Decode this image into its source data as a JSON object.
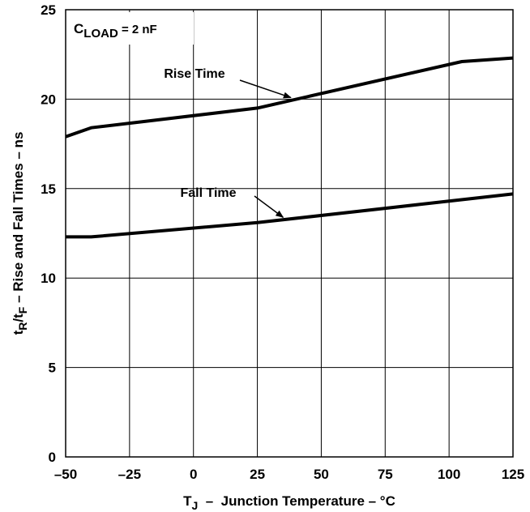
{
  "chart_data": {
    "type": "line",
    "xlabel": {
      "main": "T",
      "sub": "J",
      "rest": "  –  Junction Temperature – °C"
    },
    "ylabel": {
      "p1": "t",
      "p1_sub": "R",
      "p2": "/t",
      "p2_sub": "F",
      "p3": " – Rise and Fall Times – ns"
    },
    "xlim": [
      -50,
      125
    ],
    "ylim": [
      0,
      25
    ],
    "x_ticks": [
      "–50",
      "–25",
      "0",
      "25",
      "50",
      "75",
      "100",
      "125"
    ],
    "y_ticks": [
      "0",
      "5",
      "10",
      "15",
      "20",
      "25"
    ],
    "x_tick_values": [
      -50,
      -25,
      0,
      25,
      50,
      75,
      100,
      125
    ],
    "y_tick_values": [
      0,
      5,
      10,
      15,
      20,
      25
    ],
    "grid": true,
    "condition": {
      "main": "C",
      "sub": "LOAD",
      "rest": " = 2 nF"
    },
    "series": [
      {
        "name": "Rise Time",
        "x": [
          -50,
          -40,
          25,
          105,
          125
        ],
        "y": [
          17.9,
          18.4,
          19.5,
          22.1,
          22.3
        ]
      },
      {
        "name": "Fall Time",
        "x": [
          -50,
          -40,
          25,
          125
        ],
        "y": [
          12.3,
          12.3,
          13.1,
          14.7
        ]
      }
    ],
    "annotations": [
      {
        "text": "Rise Time",
        "target_x": 40,
        "target_y": 20.0
      },
      {
        "text": "Fall Time",
        "target_x": 37,
        "target_y": 13.3
      }
    ]
  }
}
